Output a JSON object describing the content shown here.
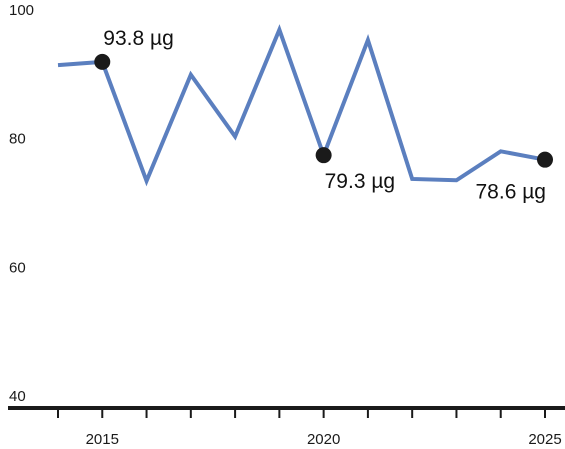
{
  "chart_data": {
    "type": "line",
    "title": "",
    "xlabel": "",
    "ylabel": "",
    "unit": "µg",
    "x": [
      2014,
      2015,
      2016,
      2017,
      2018,
      2019,
      2020,
      2021,
      2022,
      2023,
      2024,
      2025
    ],
    "series": [
      {
        "values": [
          93.3,
          93.8,
          75.3,
          91.8,
          82.2,
          98.8,
          79.3,
          97.2,
          75.6,
          75.4,
          79.9,
          78.6
        ]
      }
    ],
    "annotations": [
      {
        "x": 2015,
        "y": 93.8,
        "label": "93.8 µg",
        "position": "above-right"
      },
      {
        "x": 2020,
        "y": 79.3,
        "label": "79.3 µg",
        "position": "below-right"
      },
      {
        "x": 2025,
        "y": 78.6,
        "label": "78.6 µg",
        "position": "below-left"
      }
    ],
    "y_ticks": [
      "40",
      "60",
      "80",
      "100"
    ],
    "x_tick_labels": [
      {
        "x": 2015,
        "label": "2015"
      },
      {
        "x": 2020,
        "label": "2020"
      },
      {
        "x": 2025,
        "label": "2025"
      }
    ],
    "ylim": [
      40,
      100
    ],
    "xlim": [
      2014,
      2025
    ],
    "grid": false,
    "legend": "none",
    "colors": {
      "line": "#5b7fbf",
      "marker": "#1a1a1a",
      "axis": "#1a1a1a"
    }
  }
}
